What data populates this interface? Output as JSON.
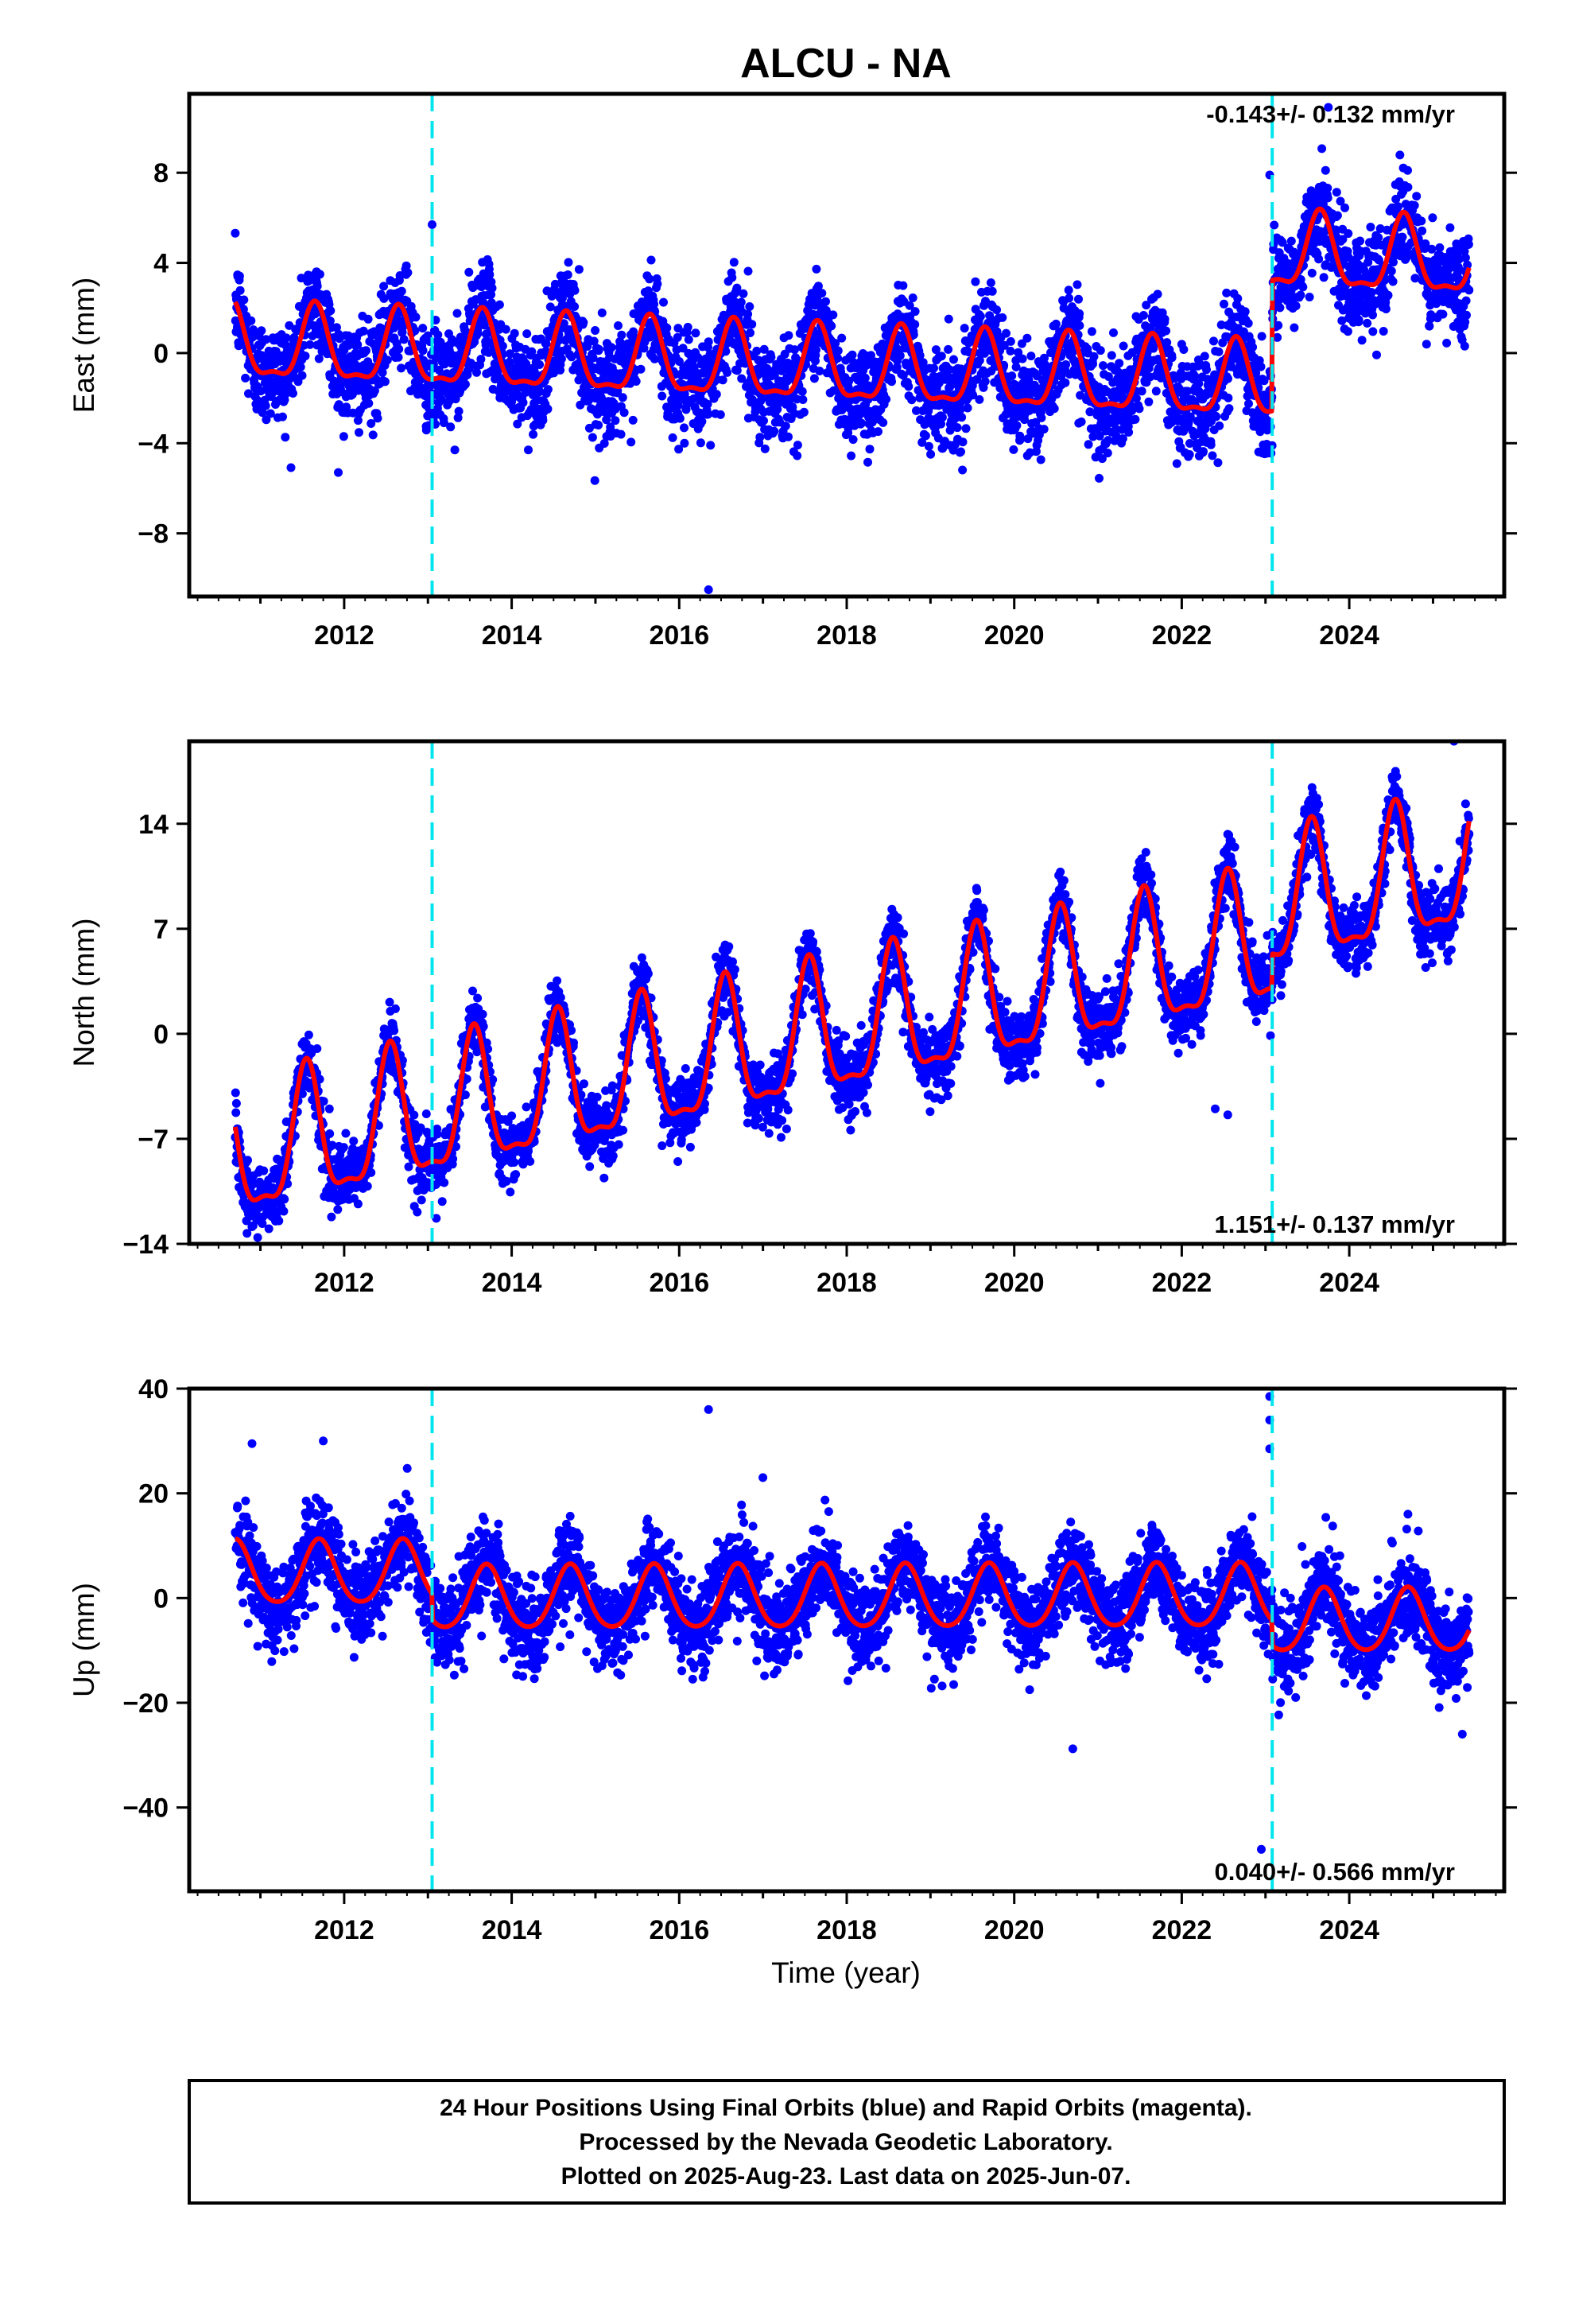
{
  "chart_data": [
    {
      "type": "scatter",
      "title": "ALCU - NA",
      "ylabel": "East (mm)",
      "xlabel": "",
      "xlim": [
        2010.15,
        2025.85
      ],
      "ylim": [
        -10.8,
        11.5
      ],
      "xticks": [
        2012,
        2014,
        2016,
        2018,
        2020,
        2022,
        2024
      ],
      "yticks": [
        -8,
        -4,
        0,
        4,
        8
      ],
      "rate_label": "-0.143+/- 0.132 mm/yr",
      "rate_position": "top-right",
      "events": [
        2013.05,
        2023.08
      ],
      "grid": false,
      "data_span": [
        2010.7,
        2025.43
      ],
      "model": {
        "series_color": "#ff0000",
        "points_color": "#0000ff",
        "rate_mm_per_yr": -0.143,
        "annual_amp": 1.6,
        "annual_phase_peak": 2010.65,
        "semiannual_amp": 0.55,
        "segments": [
          {
            "start": 2010.7,
            "end": 2023.08,
            "offset": 0.3
          },
          {
            "start": 2023.08,
            "end": 2025.43,
            "offset": 6.1
          }
        ],
        "scatter_sigma": 1.1,
        "outliers": [
          [
            2016.35,
            -10.5
          ],
          [
            2013.05,
            5.7
          ],
          [
            2023.05,
            7.9
          ],
          [
            2023.75,
            10.9
          ]
        ]
      }
    },
    {
      "type": "scatter",
      "title": "",
      "ylabel": "North (mm)",
      "xlabel": "",
      "xlim": [
        2010.15,
        2025.85
      ],
      "ylim": [
        -14,
        19.5
      ],
      "xticks": [
        2012,
        2014,
        2016,
        2018,
        2020,
        2022,
        2024
      ],
      "yticks": [
        -14,
        -7,
        0,
        7,
        14
      ],
      "rate_label": "1.151+/- 0.137 mm/yr",
      "rate_position": "bottom-right",
      "events": [
        2013.05,
        2023.08
      ],
      "grid": false,
      "data_span": [
        2010.7,
        2025.43
      ],
      "model": {
        "series_color": "#ff0000",
        "points_color": "#0000ff",
        "rate_mm_per_yr": 1.151,
        "annual_amp": 4.3,
        "annual_phase_peak": 2010.55,
        "semiannual_amp": 1.4,
        "segments": [
          {
            "start": 2010.7,
            "end": 2023.08,
            "offset": -8.3
          },
          {
            "start": 2023.08,
            "end": 2025.43,
            "offset": -6.0
          }
        ],
        "scatter_sigma": 1.1,
        "outliers": [
          [
            2013.1,
            -12.3
          ],
          [
            2022.4,
            -5.0
          ],
          [
            2022.55,
            -5.4
          ],
          [
            2024.85,
            5.3
          ],
          [
            2025.25,
            19.5
          ]
        ]
      }
    },
    {
      "type": "scatter",
      "title": "",
      "ylabel": "Up (mm)",
      "xlabel": "Time (year)",
      "xlim": [
        2010.15,
        2025.85
      ],
      "ylim": [
        -56,
        40
      ],
      "xticks": [
        2012,
        2014,
        2016,
        2018,
        2020,
        2022,
        2024
      ],
      "yticks": [
        -40,
        -20,
        0,
        20,
        40
      ],
      "rate_label": "0.040+/- 0.566 mm/yr",
      "rate_position": "bottom-right",
      "events": [
        2013.05,
        2023.08
      ],
      "grid": false,
      "data_span": [
        2010.7,
        2025.43
      ],
      "model": {
        "series_color": "#ff0000",
        "points_color": "#0000ff",
        "rate_mm_per_yr": 0.04,
        "annual_amp": 6.0,
        "annual_phase_peak": 2010.7,
        "semiannual_amp": 0.8,
        "segments": [
          {
            "start": 2010.7,
            "end": 2013.05,
            "offset": 4.5
          },
          {
            "start": 2013.05,
            "end": 2023.08,
            "offset": -0.4
          },
          {
            "start": 2023.08,
            "end": 2025.43,
            "offset": -5.2
          }
        ],
        "scatter_sigma": 4.2,
        "outliers": [
          [
            2010.9,
            29.5
          ],
          [
            2011.75,
            30.0
          ],
          [
            2016.35,
            36.0
          ],
          [
            2017.0,
            23.0
          ],
          [
            2020.7,
            -28.8
          ],
          [
            2022.95,
            -48.0
          ],
          [
            2023.05,
            38.5
          ],
          [
            2023.05,
            34.0
          ],
          [
            2023.05,
            28.5
          ],
          [
            2025.35,
            -26.0
          ]
        ]
      }
    }
  ],
  "footer": {
    "line1": "24 Hour Positions Using Final Orbits (blue) and Rapid Orbits (magenta).",
    "line2": "Processed by the Nevada Geodetic Laboratory.",
    "line3": "Plotted on 2025-Aug-23. Last data on 2025-Jun-07."
  }
}
